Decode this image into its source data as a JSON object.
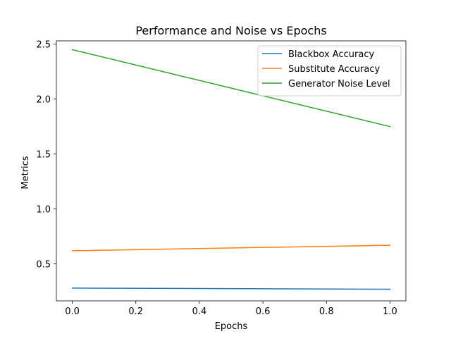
{
  "chart_data": {
    "type": "line",
    "title": "Performance and Noise vs Epochs",
    "xlabel": "Epochs",
    "ylabel": "Metrics",
    "xlim": [
      -0.05,
      1.05
    ],
    "ylim": [
      0.164,
      2.53
    ],
    "xticks": [
      0.0,
      0.2,
      0.4,
      0.6,
      0.8,
      1.0
    ],
    "xtick_labels": [
      "0.0",
      "0.2",
      "0.4",
      "0.6",
      "0.8",
      "1.0"
    ],
    "yticks": [
      0.5,
      1.0,
      1.5,
      2.0,
      2.5
    ],
    "ytick_labels": [
      "0.5",
      "1.0",
      "1.5",
      "2.0",
      "2.5"
    ],
    "grid": false,
    "legend_position": "top-right",
    "x": [
      0,
      1
    ],
    "series": [
      {
        "name": "Blackbox Accuracy",
        "color": "#1f77b4",
        "values": [
          0.28,
          0.27
        ]
      },
      {
        "name": "Substitute Accuracy",
        "color": "#ff7f0e",
        "values": [
          0.62,
          0.67
        ]
      },
      {
        "name": "Generator Noise Level",
        "color": "#2ca02c",
        "values": [
          2.45,
          1.75
        ]
      }
    ]
  }
}
